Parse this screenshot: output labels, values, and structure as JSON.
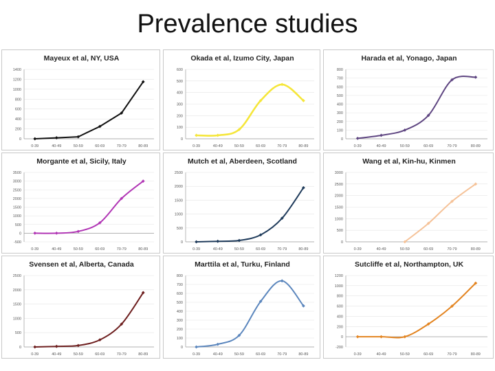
{
  "title": "Prevalence studies",
  "chart_data": [
    {
      "type": "line",
      "title": "Mayeux et al, NY, USA",
      "categories": [
        "0-39",
        "40-49",
        "50-59",
        "60-69",
        "70-79",
        "80-89"
      ],
      "values": [
        0,
        20,
        40,
        250,
        520,
        1150
      ],
      "ylim": [
        0,
        1400
      ],
      "yticks": [
        0,
        200,
        400,
        600,
        800,
        1000,
        1200,
        1400
      ],
      "color": "#111111",
      "smooth": false,
      "start": 0
    },
    {
      "type": "line",
      "title": "Okada et al, Izumo City, Japan",
      "categories": [
        "0-39",
        "40-49",
        "50-59",
        "60-69",
        "70-79",
        "80-89"
      ],
      "values": [
        30,
        30,
        80,
        330,
        470,
        330
      ],
      "ylim": [
        0,
        600
      ],
      "yticks": [
        0,
        100,
        200,
        300,
        400,
        500,
        600
      ],
      "color": "#f5e63a",
      "smooth": true,
      "start": 0
    },
    {
      "type": "line",
      "title": "Harada et al, Yonago, Japan",
      "categories": [
        "0-39",
        "40-49",
        "50-59",
        "60-69",
        "70-79",
        "80-89"
      ],
      "values": [
        5,
        40,
        100,
        270,
        680,
        710
      ],
      "ylim": [
        0,
        800
      ],
      "yticks": [
        0,
        100,
        200,
        300,
        400,
        500,
        600,
        700,
        800
      ],
      "color": "#5e4581",
      "smooth": true,
      "start": 0
    },
    {
      "type": "line",
      "title": "Morgante et al, Sicily, Italy",
      "categories": [
        "0-39",
        "40-49",
        "50-59",
        "60-69",
        "70-79",
        "80-89"
      ],
      "values": [
        0,
        0,
        100,
        600,
        2000,
        3000
      ],
      "ylim": [
        -500,
        3500
      ],
      "yticks": [
        -500,
        0,
        500,
        1000,
        1500,
        2000,
        2500,
        3000,
        3500
      ],
      "color": "#b136b5",
      "smooth": true,
      "start": 0
    },
    {
      "type": "line",
      "title": "Mutch et al, Aberdeen, Scotland",
      "categories": [
        "0-39",
        "40-49",
        "50-59",
        "60-69",
        "70-79",
        "80-89"
      ],
      "values": [
        0,
        20,
        50,
        250,
        850,
        1950
      ],
      "ylim": [
        0,
        2500
      ],
      "yticks": [
        0,
        500,
        1000,
        1500,
        2000,
        2500
      ],
      "color": "#1f3b5b",
      "smooth": true,
      "start": 0
    },
    {
      "type": "line",
      "title": "Wang et al, Kin-hu, Kinmen",
      "categories": [
        "0-39",
        "40-49",
        "50-59",
        "60-69",
        "70-79",
        "80-89"
      ],
      "values": [
        null,
        null,
        0,
        800,
        1750,
        2500
      ],
      "ylim": [
        0,
        3000
      ],
      "yticks": [
        0,
        500,
        1000,
        1500,
        2000,
        2500,
        3000
      ],
      "color": "#f5c298",
      "smooth": true,
      "start": 2
    },
    {
      "type": "line",
      "title": "Svensen et al, Alberta, Canada",
      "categories": [
        "0-39",
        "40-49",
        "50-59",
        "60-69",
        "70-79",
        "80-89"
      ],
      "values": [
        0,
        20,
        50,
        250,
        800,
        1900
      ],
      "ylim": [
        0,
        2500
      ],
      "yticks": [
        0,
        500,
        1000,
        1500,
        2000,
        2500
      ],
      "color": "#6e1f1f",
      "smooth": true,
      "start": 0
    },
    {
      "type": "line",
      "title": "Marttila et al, Turku, Finland",
      "categories": [
        "0-39",
        "40-49",
        "50-59",
        "60-69",
        "70-79",
        "80-89"
      ],
      "values": [
        0,
        30,
        130,
        510,
        740,
        460
      ],
      "ylim": [
        0,
        800
      ],
      "yticks": [
        0,
        100,
        200,
        300,
        400,
        500,
        600,
        700,
        800
      ],
      "color": "#5b86bd",
      "smooth": true,
      "start": 0
    },
    {
      "type": "line",
      "title": "Sutcliffe et al, Northampton, UK",
      "categories": [
        "0-39",
        "40-49",
        "50-59",
        "60-69",
        "70-79",
        "80-89"
      ],
      "values": [
        0,
        0,
        0,
        250,
        600,
        1050
      ],
      "ylim": [
        -200,
        1200
      ],
      "yticks": [
        -200,
        0,
        200,
        400,
        600,
        800,
        1000,
        1200
      ],
      "color": "#e38420",
      "smooth": true,
      "start": 0
    }
  ]
}
